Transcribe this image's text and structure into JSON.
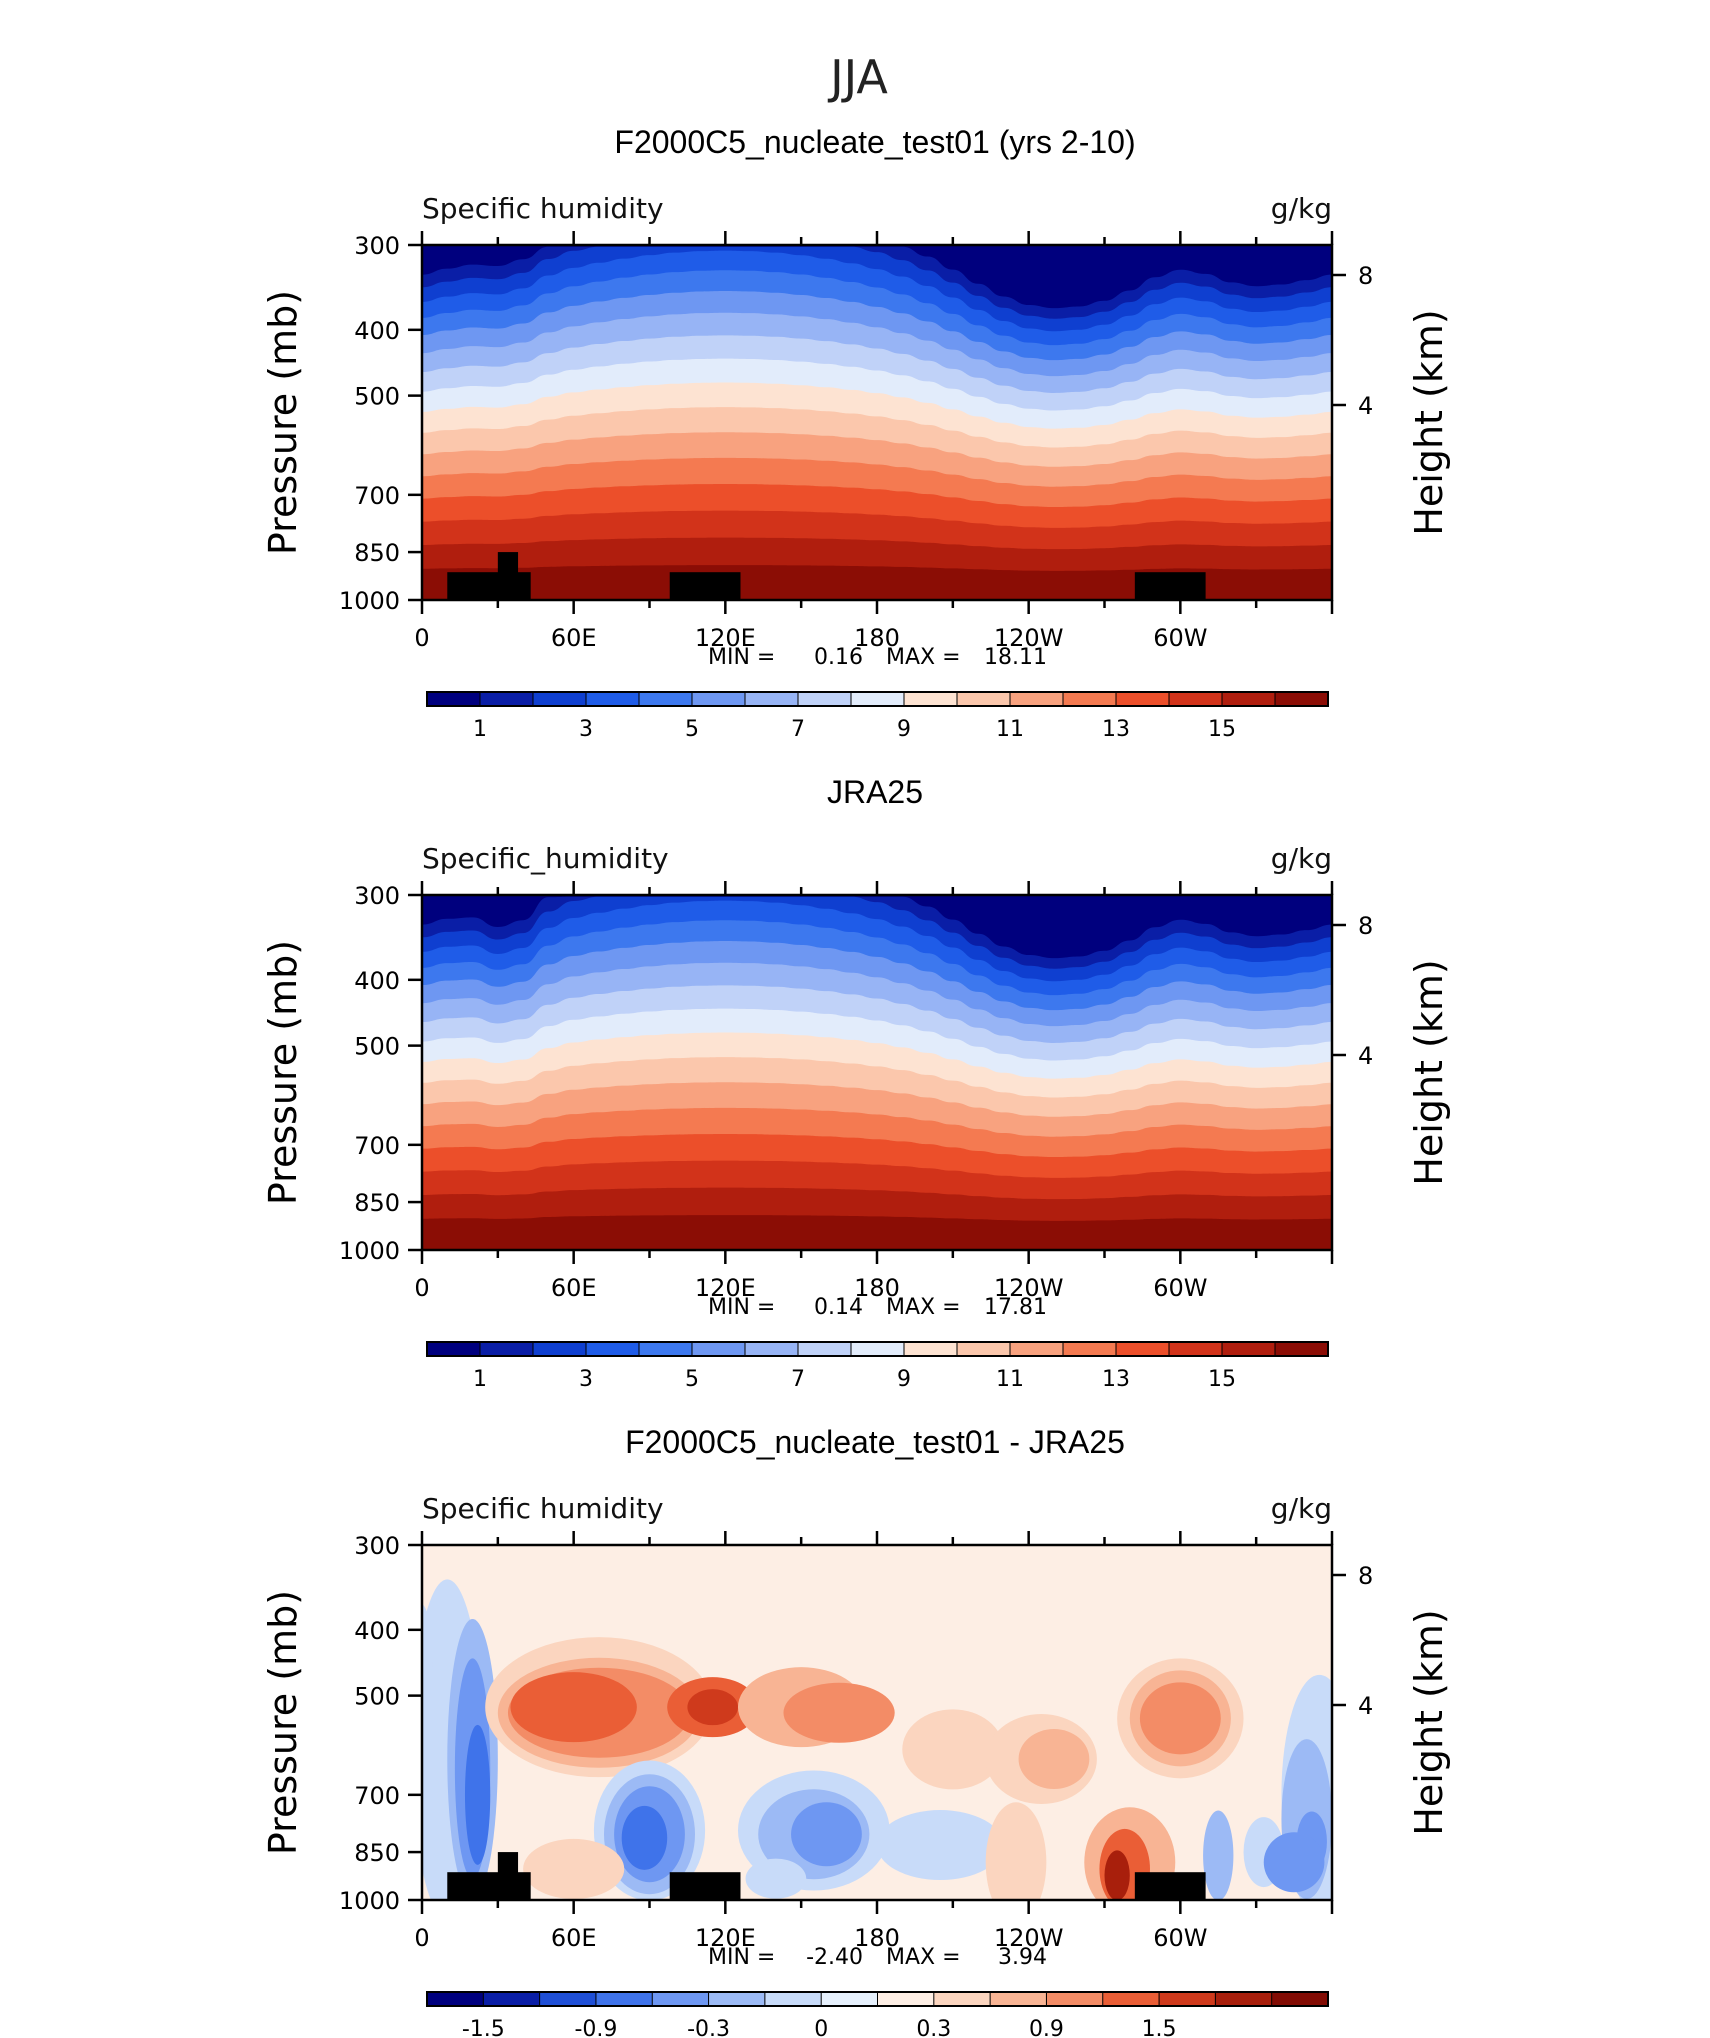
{
  "page_title": "JJA",
  "colors": {
    "abs_scale": [
      "#00007e",
      "#0a1ea6",
      "#0f3fd0",
      "#1f5ce8",
      "#3d78ee",
      "#6e97f2",
      "#97b4f5",
      "#c0d2f8",
      "#e2ecfb",
      "#fde3d2",
      "#fbc7ac",
      "#f8a27f",
      "#f47a51",
      "#ec4f2a",
      "#d2331a",
      "#b01e0e",
      "#8b0d05"
    ],
    "diff_scale": [
      "#00007e",
      "#0a1ea6",
      "#1f4fd6",
      "#3f73ea",
      "#6e97f2",
      "#9cbaf5",
      "#c8dbf9",
      "#e6f0fc",
      "#fdeee4",
      "#fbd5bf",
      "#f8b494",
      "#f38c66",
      "#ea5e36",
      "#cf3a1c",
      "#a81f0c",
      "#820c04"
    ],
    "topography": "#000000"
  },
  "chart_data": [
    {
      "type": "heatmap",
      "panel_title": "F2000C5_nucleate_test01 (yrs 2-10)",
      "left_title": "Specific humidity",
      "units": "g/kg",
      "ylabel": "Pressure (mb)",
      "ylabel_right": "Height (km)",
      "y_ticks": [
        "300",
        "400",
        "500",
        "700",
        "850",
        "1000"
      ],
      "y_ticks_right": [
        "8",
        "4"
      ],
      "x_ticks": [
        "0",
        "60E",
        "120E",
        "180",
        "120W",
        "60W"
      ],
      "ylim": [
        1000,
        300
      ],
      "xlim": [
        0,
        360
      ],
      "min_label": "MIN =",
      "min_value": "0.16",
      "max_label": "MAX =",
      "max_value": "18.11",
      "colorbar_labels": [
        "1",
        "3",
        "5",
        "7",
        "9",
        "11",
        "13",
        "15"
      ],
      "colorbar_levels": [
        0,
        1,
        2,
        3,
        4,
        5,
        6,
        7,
        8,
        9,
        10,
        11,
        12,
        13,
        14,
        15,
        16
      ],
      "topography": true
    },
    {
      "type": "heatmap",
      "panel_title": "JRA25",
      "left_title": "Specific_humidity",
      "units": "g/kg",
      "ylabel": "Pressure (mb)",
      "ylabel_right": "Height (km)",
      "y_ticks": [
        "300",
        "400",
        "500",
        "700",
        "850",
        "1000"
      ],
      "y_ticks_right": [
        "8",
        "4"
      ],
      "x_ticks": [
        "0",
        "60E",
        "120E",
        "180",
        "120W",
        "60W"
      ],
      "ylim": [
        1000,
        300
      ],
      "xlim": [
        0,
        360
      ],
      "min_label": "MIN =",
      "min_value": "0.14",
      "max_label": "MAX =",
      "max_value": "17.81",
      "colorbar_labels": [
        "1",
        "3",
        "5",
        "7",
        "9",
        "11",
        "13",
        "15"
      ],
      "colorbar_levels": [
        0,
        1,
        2,
        3,
        4,
        5,
        6,
        7,
        8,
        9,
        10,
        11,
        12,
        13,
        14,
        15,
        16
      ],
      "topography": false
    },
    {
      "type": "heatmap",
      "panel_title": "F2000C5_nucleate_test01 - JRA25",
      "left_title": "Specific humidity",
      "units": "g/kg",
      "ylabel": "Pressure (mb)",
      "ylabel_right": "Height (km)",
      "y_ticks": [
        "300",
        "400",
        "500",
        "700",
        "850",
        "1000"
      ],
      "y_ticks_right": [
        "8",
        "4"
      ],
      "x_ticks": [
        "0",
        "60E",
        "120E",
        "180",
        "120W",
        "60W"
      ],
      "ylim": [
        1000,
        300
      ],
      "xlim": [
        0,
        360
      ],
      "min_label": "MIN =",
      "min_value": "-2.40",
      "max_label": "MAX =",
      "max_value": "3.94",
      "colorbar_labels": [
        "-1.5",
        "-0.9",
        "-0.3",
        "0",
        "0.3",
        "0.9",
        "1.5"
      ],
      "colorbar_levels": [
        -1.8,
        -1.5,
        -1.2,
        -0.9,
        -0.6,
        -0.3,
        -0.1,
        0,
        0.1,
        0.3,
        0.6,
        0.9,
        1.2,
        1.5,
        1.8
      ],
      "topography": true
    }
  ]
}
